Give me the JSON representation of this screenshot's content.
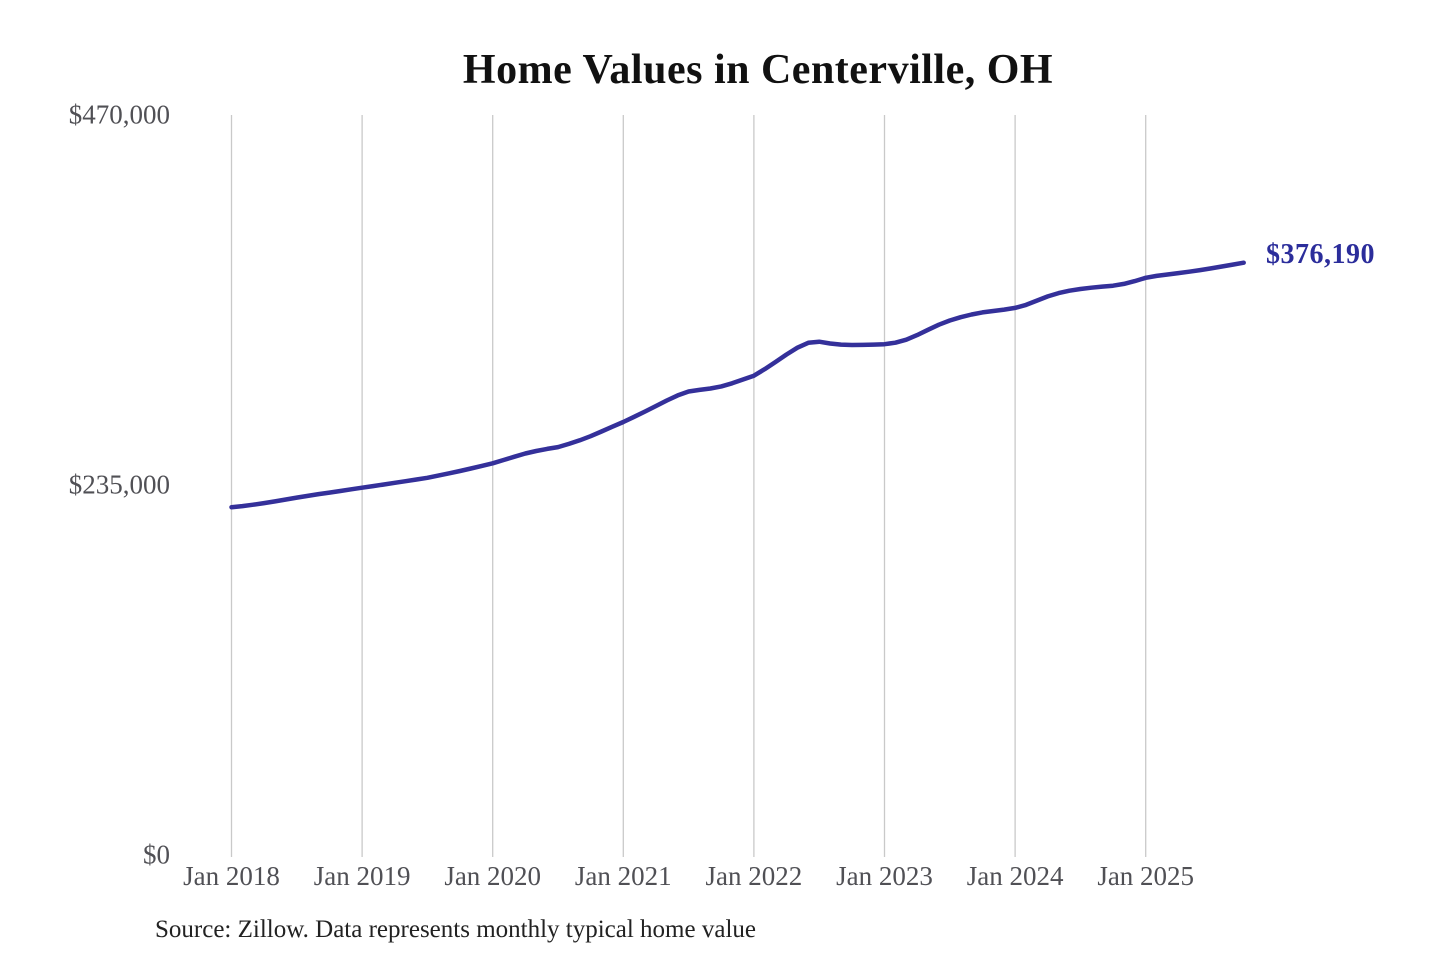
{
  "title": "Home Values in Centerville, OH",
  "end_label": "$376,190",
  "source_note": "Source: Zillow. Data represents monthly typical home value",
  "colors": {
    "line": "#34309a",
    "end_label": "#2b2d9b",
    "grid": "#c9c9c9",
    "axis_text": "#505055",
    "title_text": "#111111",
    "source_text": "#222222",
    "background": "#ffffff"
  },
  "y_axis": {
    "ticks": [
      {
        "label": "$470,000",
        "value": 470000
      },
      {
        "label": "$235,000",
        "value": 235000
      },
      {
        "label": "$0",
        "value": 0
      }
    ]
  },
  "x_axis": {
    "ticks": [
      {
        "label": "Jan 2018",
        "month": "2018-01"
      },
      {
        "label": "Jan 2019",
        "month": "2019-01"
      },
      {
        "label": "Jan 2020",
        "month": "2020-01"
      },
      {
        "label": "Jan 2021",
        "month": "2021-01"
      },
      {
        "label": "Jan 2022",
        "month": "2022-01"
      },
      {
        "label": "Jan 2023",
        "month": "2023-01"
      },
      {
        "label": "Jan 2024",
        "month": "2024-01"
      },
      {
        "label": "Jan 2025",
        "month": "2025-01"
      }
    ]
  },
  "chart_data": {
    "type": "line",
    "title": "Home Values in Centerville, OH",
    "xlabel": "",
    "ylabel": "",
    "ylim": [
      0,
      470000
    ],
    "grid": "vertical-only",
    "legend": "none",
    "y_tick_labels": [
      "$0",
      "$235,000",
      "$470,000"
    ],
    "x_tick_labels": [
      "Jan 2018",
      "Jan 2019",
      "Jan 2020",
      "Jan 2021",
      "Jan 2022",
      "Jan 2023",
      "Jan 2024",
      "Jan 2025"
    ],
    "last_point_annotation": "$376,190",
    "x": [
      "2018-01",
      "2018-02",
      "2018-03",
      "2018-04",
      "2018-05",
      "2018-06",
      "2018-07",
      "2018-08",
      "2018-09",
      "2018-10",
      "2018-11",
      "2018-12",
      "2019-01",
      "2019-02",
      "2019-03",
      "2019-04",
      "2019-05",
      "2019-06",
      "2019-07",
      "2019-08",
      "2019-09",
      "2019-10",
      "2019-11",
      "2019-12",
      "2020-01",
      "2020-02",
      "2020-03",
      "2020-04",
      "2020-05",
      "2020-06",
      "2020-07",
      "2020-08",
      "2020-09",
      "2020-10",
      "2020-11",
      "2020-12",
      "2021-01",
      "2021-02",
      "2021-03",
      "2021-04",
      "2021-05",
      "2021-06",
      "2021-07",
      "2021-08",
      "2021-09",
      "2021-10",
      "2021-11",
      "2021-12",
      "2022-01",
      "2022-02",
      "2022-03",
      "2022-04",
      "2022-05",
      "2022-06",
      "2022-07",
      "2022-08",
      "2022-09",
      "2022-10",
      "2022-11",
      "2022-12",
      "2023-01",
      "2023-02",
      "2023-03",
      "2023-04",
      "2023-05",
      "2023-06",
      "2023-07",
      "2023-08",
      "2023-09",
      "2023-10",
      "2023-11",
      "2023-12",
      "2024-01",
      "2024-02",
      "2024-03",
      "2024-04",
      "2024-05",
      "2024-06",
      "2024-07",
      "2024-08",
      "2024-09",
      "2024-10",
      "2024-11",
      "2024-12",
      "2025-01",
      "2025-02",
      "2025-03",
      "2025-04",
      "2025-05",
      "2025-06",
      "2025-07",
      "2025-08",
      "2025-09",
      "2025-10"
    ],
    "values": [
      220900,
      221600,
      222500,
      223500,
      224600,
      225800,
      227000,
      228100,
      229200,
      230200,
      231200,
      232300,
      233300,
      234300,
      235300,
      236400,
      237400,
      238500,
      239600,
      241000,
      242400,
      243900,
      245500,
      247100,
      248800,
      250900,
      253000,
      255000,
      256600,
      257900,
      259100,
      261100,
      263400,
      266000,
      269000,
      272000,
      275000,
      278300,
      281700,
      285200,
      288700,
      291900,
      294400,
      295400,
      296300,
      297600,
      299600,
      302000,
      304400,
      308600,
      313200,
      317900,
      322200,
      325300,
      326000,
      324900,
      324200,
      323900,
      324000,
      324200,
      324400,
      325400,
      327300,
      330200,
      333600,
      336800,
      339500,
      341600,
      343300,
      344600,
      345500,
      346400,
      347500,
      349400,
      352100,
      354800,
      356900,
      358400,
      359500,
      360300,
      361000,
      361600,
      362700,
      364500,
      366600,
      367800,
      368700,
      369600,
      370500,
      371500,
      372600,
      373800,
      375000,
      376190
    ]
  }
}
